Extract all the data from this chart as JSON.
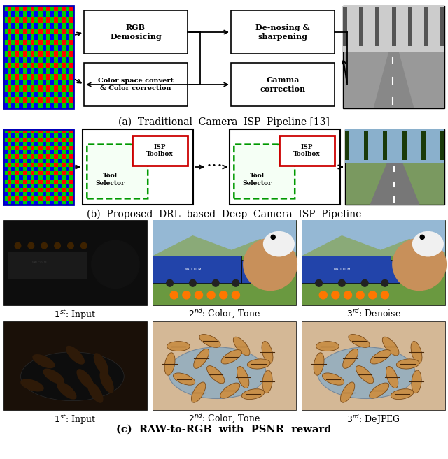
{
  "fig_width": 6.4,
  "fig_height": 6.57,
  "bg_color": "#ffffff",
  "title_a": "(a)  Traditional  Camera  ISP  Pipeline [13]",
  "title_b": "(b)  Proposed  DRL  based  Deep  Camera  ISP  Pipeline",
  "title_c": "(c)  RAW-to-RGB  with  PSNR  reward",
  "box_edge_color": "#000000",
  "red_box_color": "#cc0000",
  "green_dashed_color": "#009900",
  "arrow_color": "#000000"
}
